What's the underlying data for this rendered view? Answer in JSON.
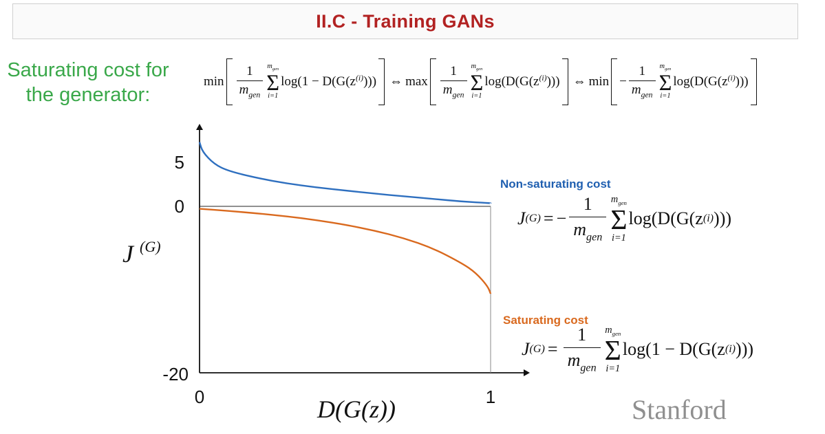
{
  "slide": {
    "title": "II.C - Training GANs",
    "left_label": "Saturating cost for the generator:",
    "sat_equation": {
      "min": "min",
      "max": "max",
      "iff": "⇔",
      "one": "1",
      "minus": "−",
      "m": "m",
      "gen": "gen",
      "i_eq_1": "i=1",
      "sigma": "Σ",
      "term1": "log(1 − D(G(z",
      "term2": "log(D(G(z",
      "sup_i": "(i)",
      "close": ")))"
    },
    "nonsat_label": "Non-saturating cost",
    "sat_label": "Saturating cost",
    "j_eq": {
      "J": "J",
      "sup_G": "(G)",
      "equals": "=",
      "minus": "−",
      "one": "1",
      "m": "m",
      "gen": "gen",
      "i_eq_1": "i=1",
      "sigma": "Σ",
      "ns_term": "log(D(G(z",
      "s_term": "log(1 − D(G(z",
      "sup_i": "(i)",
      "close": ")))"
    },
    "watermark": "Stanford"
  },
  "chart_data": {
    "type": "line",
    "xlabel": "D(G(z))",
    "ylabel": "J(G)",
    "x_ticks": [
      "0",
      "1"
    ],
    "y_ticks": [
      "5",
      "0",
      "-20"
    ],
    "xlim": [
      0,
      1
    ],
    "ylim": [
      -20,
      8
    ],
    "series": [
      {
        "name": "Non-saturating cost",
        "color": "#2e6fbf",
        "x": [
          0.0,
          0.01,
          0.05,
          0.1,
          0.2,
          0.3,
          0.4,
          0.5,
          0.6,
          0.7,
          0.8,
          0.9,
          1.0
        ],
        "y": [
          7.3,
          6.2,
          4.8,
          4.0,
          3.2,
          2.6,
          2.15,
          1.8,
          1.45,
          1.15,
          0.85,
          0.55,
          0.35
        ]
      },
      {
        "name": "Saturating cost",
        "color": "#d9691e",
        "x": [
          0.0,
          0.1,
          0.2,
          0.3,
          0.4,
          0.5,
          0.6,
          0.7,
          0.8,
          0.9,
          0.95,
          0.99,
          1.0
        ],
        "y": [
          -0.3,
          -0.55,
          -0.85,
          -1.2,
          -1.65,
          -2.2,
          -2.9,
          -3.8,
          -5.0,
          -6.8,
          -8.0,
          -9.6,
          -10.5
        ]
      }
    ]
  }
}
